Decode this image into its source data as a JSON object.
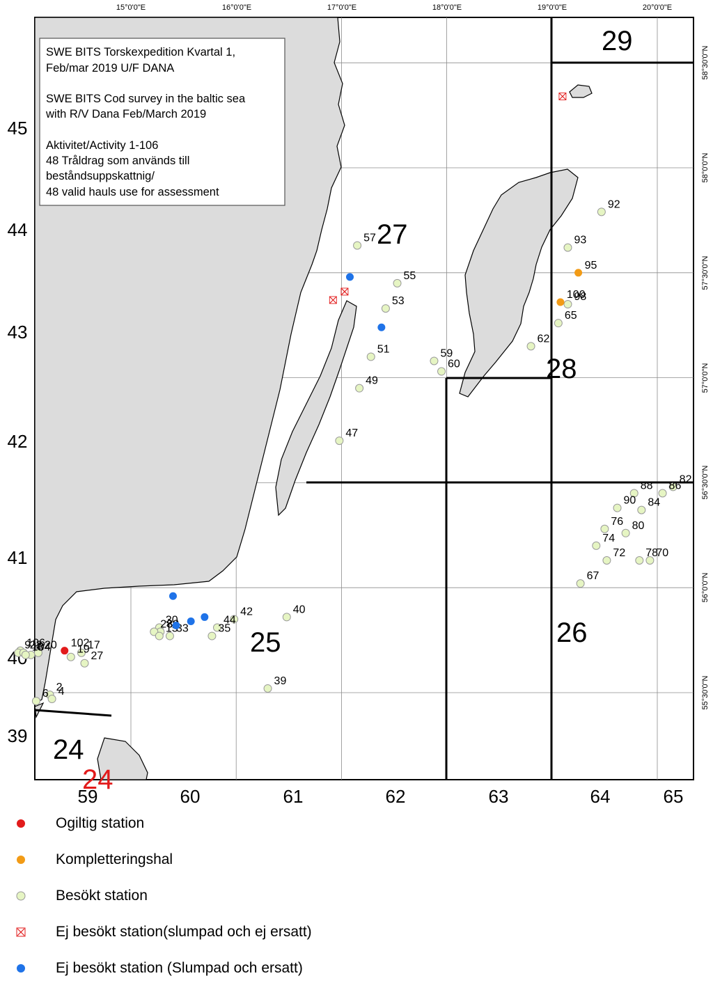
{
  "info_box": {
    "lines": [
      "SWE BITS Torskexpedition Kvartal 1,",
      "Feb/mar 2019 U/F DANA",
      "",
      "SWE BITS Cod survey in the baltic sea",
      "with R/V Dana Feb/March 2019",
      "",
      "Aktivitet/Activity 1-106",
      "48 Tråldrag som används till",
      "beståndsuppskattnig/",
      "48 valid hauls use for assessment"
    ]
  },
  "top_ticks": [
    "15°0'0\"E",
    "16°0'0\"E",
    "17°0'0\"E",
    "18°0'0\"E",
    "19°0'0\"E",
    "20°0'0\"E"
  ],
  "right_ticks": [
    "58°30'0\"N",
    "58°0'0\"N",
    "57°30'0\"N",
    "57°0'0\"N",
    "56°30'0\"N",
    "56°0'0\"N",
    "55°30'0\"N"
  ],
  "left_rect_labels": [
    "45",
    "44",
    "43",
    "42",
    "41",
    "40",
    "39"
  ],
  "bottom_rect_labels": [
    "59",
    "60",
    "61",
    "62",
    "63",
    "64",
    "65"
  ],
  "subdivisions": [
    "29",
    "27",
    "28",
    "25",
    "26",
    "24"
  ],
  "subdivision_24_red": "24",
  "colors": {
    "land": "#dcdcdc",
    "red": "#e21b1b",
    "orange": "#f29b16",
    "visited": "#e6f5c3",
    "blue": "#1f73e8"
  },
  "stations": [
    {
      "label": "57",
      "type": "visited",
      "lon": 17.15,
      "lat": 57.63
    },
    {
      "label": "55",
      "type": "visited",
      "lon": 17.53,
      "lat": 57.45
    },
    {
      "label": "53",
      "type": "visited",
      "lon": 17.42,
      "lat": 57.33
    },
    {
      "label": "51",
      "type": "visited",
      "lon": 17.28,
      "lat": 57.1
    },
    {
      "label": "49",
      "type": "visited",
      "lon": 17.17,
      "lat": 56.95
    },
    {
      "label": "47",
      "type": "visited",
      "lon": 16.98,
      "lat": 56.7
    },
    {
      "label": "59",
      "type": "visited",
      "lon": 17.88,
      "lat": 57.08
    },
    {
      "label": "60",
      "type": "visited",
      "lon": 17.95,
      "lat": 57.03
    },
    {
      "label": "62",
      "type": "visited",
      "lon": 18.8,
      "lat": 57.15
    },
    {
      "label": "65",
      "type": "visited",
      "lon": 19.06,
      "lat": 57.26
    },
    {
      "label": "98",
      "type": "visited",
      "lon": 19.15,
      "lat": 57.35
    },
    {
      "label": "100",
      "type": "orange",
      "lon": 19.08,
      "lat": 57.36
    },
    {
      "label": "95",
      "type": "orange",
      "lon": 19.25,
      "lat": 57.5
    },
    {
      "label": "93",
      "type": "visited",
      "lon": 19.15,
      "lat": 57.62
    },
    {
      "label": "92",
      "type": "visited",
      "lon": 19.47,
      "lat": 57.79
    },
    {
      "label": "82",
      "type": "visited",
      "lon": 20.15,
      "lat": 56.48
    },
    {
      "label": "86",
      "type": "visited",
      "lon": 20.05,
      "lat": 56.45
    },
    {
      "label": "88",
      "type": "visited",
      "lon": 19.78,
      "lat": 56.45
    },
    {
      "label": "84",
      "type": "visited",
      "lon": 19.85,
      "lat": 56.37
    },
    {
      "label": "90",
      "type": "visited",
      "lon": 19.62,
      "lat": 56.38
    },
    {
      "label": "76",
      "type": "visited",
      "lon": 19.5,
      "lat": 56.28
    },
    {
      "label": "80",
      "type": "visited",
      "lon": 19.7,
      "lat": 56.26
    },
    {
      "label": "74",
      "type": "visited",
      "lon": 19.42,
      "lat": 56.2
    },
    {
      "label": "72",
      "type": "visited",
      "lon": 19.52,
      "lat": 56.13
    },
    {
      "label": "78",
      "type": "visited",
      "lon": 19.83,
      "lat": 56.13
    },
    {
      "label": "70",
      "type": "visited",
      "lon": 19.93,
      "lat": 56.13
    },
    {
      "label": "67",
      "type": "visited",
      "lon": 19.27,
      "lat": 56.02
    },
    {
      "label": "40",
      "type": "visited",
      "lon": 16.48,
      "lat": 55.86
    },
    {
      "label": "42",
      "type": "visited",
      "lon": 15.98,
      "lat": 55.85
    },
    {
      "label": "44",
      "type": "visited",
      "lon": 15.82,
      "lat": 55.81
    },
    {
      "label": "35",
      "type": "visited",
      "lon": 15.77,
      "lat": 55.77
    },
    {
      "label": "33",
      "type": "visited",
      "lon": 15.37,
      "lat": 55.77
    },
    {
      "label": "30",
      "type": "visited",
      "lon": 15.27,
      "lat": 55.81
    },
    {
      "label": "32",
      "type": "visited",
      "lon": 15.28,
      "lat": 55.79
    },
    {
      "label": "28",
      "type": "visited",
      "lon": 15.22,
      "lat": 55.79
    },
    {
      "label": "15",
      "type": "visited",
      "lon": 15.27,
      "lat": 55.77
    },
    {
      "label": "39",
      "type": "visited",
      "lon": 16.3,
      "lat": 55.52
    },
    {
      "label": "102",
      "type": "red",
      "lon": 14.37,
      "lat": 55.7
    },
    {
      "label": "17",
      "type": "visited",
      "lon": 14.53,
      "lat": 55.69
    },
    {
      "label": "19",
      "type": "visited",
      "lon": 14.43,
      "lat": 55.67
    },
    {
      "label": "27",
      "type": "visited",
      "lon": 14.56,
      "lat": 55.64
    },
    {
      "label": "20",
      "type": "visited",
      "lon": 14.12,
      "lat": 55.69
    },
    {
      "label": "106",
      "type": "visited",
      "lon": 13.95,
      "lat": 55.7
    },
    {
      "label": "9",
      "type": "visited",
      "lon": 13.93,
      "lat": 55.69
    },
    {
      "label": "22",
      "type": "visited",
      "lon": 13.98,
      "lat": 55.69
    },
    {
      "label": "8",
      "type": "visited",
      "lon": 14.05,
      "lat": 55.68
    },
    {
      "label": "104",
      "type": "visited",
      "lon": 14.0,
      "lat": 55.68
    },
    {
      "label": "2",
      "type": "visited",
      "lon": 14.23,
      "lat": 55.49
    },
    {
      "label": "4",
      "type": "visited",
      "lon": 14.25,
      "lat": 55.47
    },
    {
      "label": "6",
      "type": "visited",
      "lon": 14.1,
      "lat": 55.46
    },
    {
      "label": "",
      "type": "blue",
      "lon": 17.08,
      "lat": 57.48
    },
    {
      "label": "",
      "type": "blue",
      "lon": 17.38,
      "lat": 57.24
    },
    {
      "label": "",
      "type": "blue",
      "lon": 15.4,
      "lat": 55.96
    },
    {
      "label": "",
      "type": "blue",
      "lon": 15.43,
      "lat": 55.82
    },
    {
      "label": "",
      "type": "blue",
      "lon": 15.57,
      "lat": 55.84
    },
    {
      "label": "",
      "type": "blue",
      "lon": 15.7,
      "lat": 55.86
    },
    {
      "label": "",
      "type": "cross",
      "lon": 16.92,
      "lat": 57.37
    },
    {
      "label": "",
      "type": "cross",
      "lon": 17.03,
      "lat": 57.41
    },
    {
      "label": "",
      "type": "cross",
      "lon": 19.1,
      "lat": 58.34
    }
  ],
  "legend": [
    {
      "type": "red",
      "label": "Ogiltig station"
    },
    {
      "type": "orange",
      "label": "Kompletteringshal"
    },
    {
      "type": "visited",
      "label": "Besökt station"
    },
    {
      "type": "cross",
      "label": "Ej besökt station(slumpad och ej ersatt)"
    },
    {
      "type": "blue",
      "label": "Ej besökt station (Slumpad och ersatt)"
    }
  ]
}
